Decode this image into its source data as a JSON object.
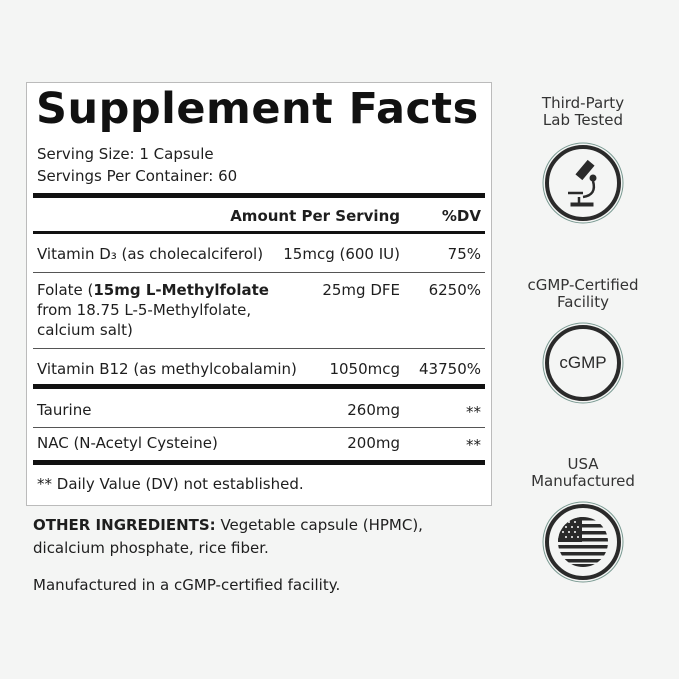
{
  "facts": {
    "title": "Supplement Facts",
    "serving_size": "Serving Size: 1 Capsule",
    "servings_per_container": "Servings Per Container: 60",
    "header_amount": "Amount Per Serving",
    "header_dv": "%DV",
    "rows": [
      {
        "name": "Vitamin D₃ (as cholecalciferol)",
        "amount": "15mcg (600 IU)",
        "dv": "75%"
      },
      {
        "name_bold": "15mg L-Methylfolate",
        "name_prefix": "Folate (",
        "name_line2": "from 18.75 L-5-Methylfolate,",
        "name_line3": "calcium salt)",
        "amount": "25mg DFE",
        "dv": "6250%"
      },
      {
        "name": "Vitamin B12 (as methylcobalamin)",
        "amount": "1050mcg",
        "dv": "43750%"
      },
      {
        "name": "Taurine",
        "amount": "260mg",
        "dv": "**"
      },
      {
        "name": "NAC (N-Acetyl Cysteine)",
        "amount": "200mg",
        "dv": "**"
      }
    ],
    "footnote": "** Daily Value (DV) not established."
  },
  "other_ingredients": {
    "label": "OTHER INGREDIENTS:",
    "text": " Vegetable capsule (HPMC), dicalcium phosphate, rice fiber.",
    "manufactured": "Manufactured in a cGMP-certified facility."
  },
  "badges": [
    {
      "line1": "Third-Party",
      "line2": "Lab Tested",
      "icon": "microscope-icon"
    },
    {
      "line1": "cGMP-Certified",
      "line2": "Facility",
      "icon_text": "cGMP"
    },
    {
      "line1": "USA",
      "line2": "Manufactured",
      "icon": "us-flag-icon"
    }
  ]
}
